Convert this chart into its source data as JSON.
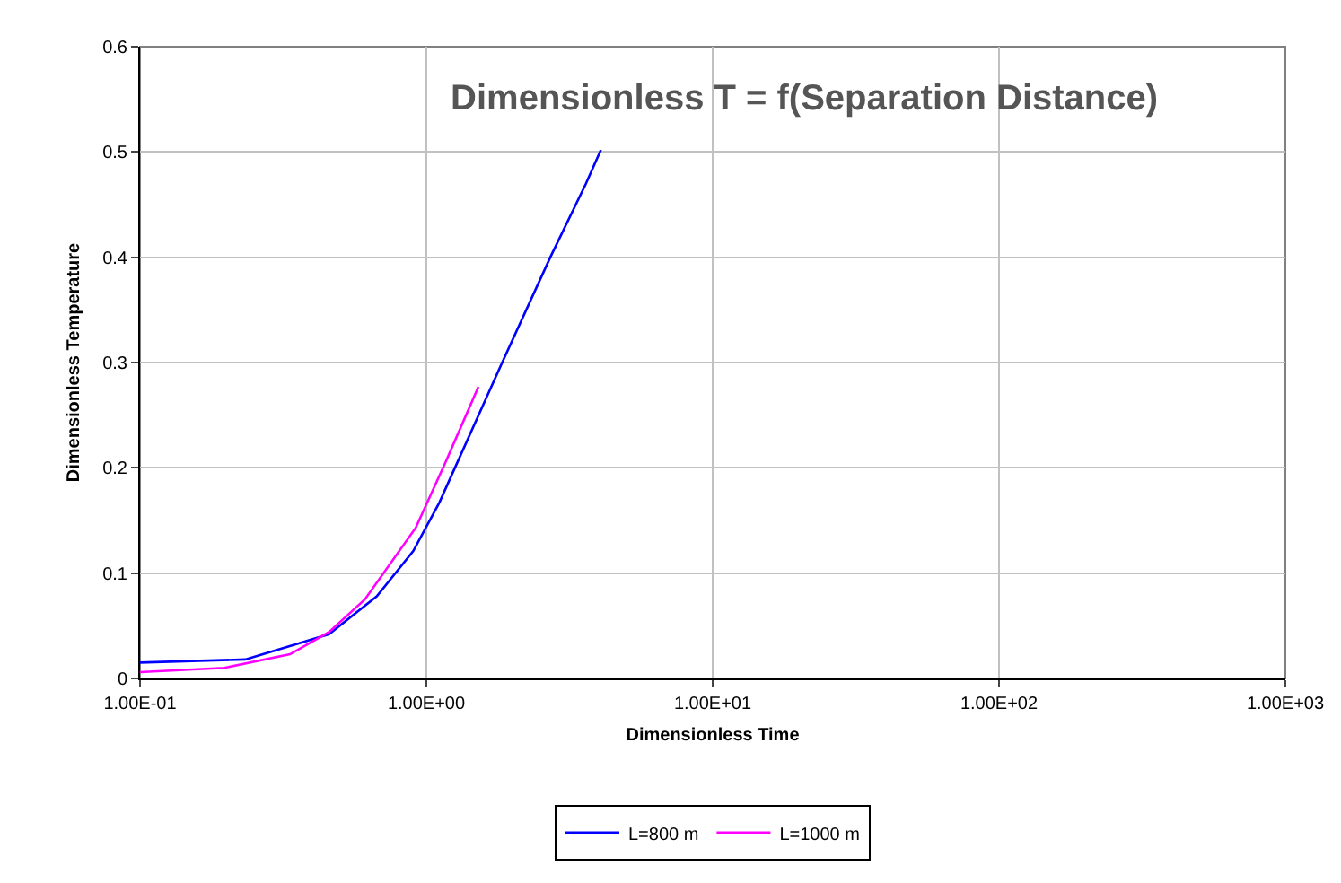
{
  "chart_data": {
    "type": "line",
    "title": "Dimensionless T = f(Separation Distance)",
    "xlabel": "Dimensionless Time",
    "ylabel": "Dimensionless Temperature",
    "log": "x",
    "xlim": [
      0.1,
      1000
    ],
    "xticks": [
      {
        "value": 0.1,
        "label": "1.00E-01"
      },
      {
        "value": 1,
        "label": "1.00E+00"
      },
      {
        "value": 10,
        "label": "1.00E+01"
      },
      {
        "value": 100,
        "label": "1.00E+02"
      },
      {
        "value": 1000,
        "label": "1.00E+03"
      }
    ],
    "ylim": [
      0,
      0.6
    ],
    "yticks": [
      0,
      0.1,
      0.2,
      0.3,
      0.4,
      0.5,
      0.6
    ],
    "grid": true,
    "legend": "bottom",
    "marker": "none",
    "line_style": "solid",
    "series": [
      {
        "name": "L=800 m",
        "color": "#0000ff",
        "x": [
          0.1,
          0.233,
          0.457,
          0.671,
          0.9,
          1.11,
          1.84,
          2.71,
          3.61,
          4.07
        ],
        "values": [
          0.015,
          0.018,
          0.042,
          0.078,
          0.121,
          0.167,
          0.3,
          0.4,
          0.47,
          0.502
        ]
      },
      {
        "name": "L=1000 m",
        "color": "#ff00ff",
        "x": [
          0.1,
          0.197,
          0.334,
          0.457,
          0.61,
          0.918,
          1.17,
          1.52
        ],
        "values": [
          0.006,
          0.01,
          0.023,
          0.044,
          0.075,
          0.143,
          0.206,
          0.277
        ]
      }
    ]
  }
}
